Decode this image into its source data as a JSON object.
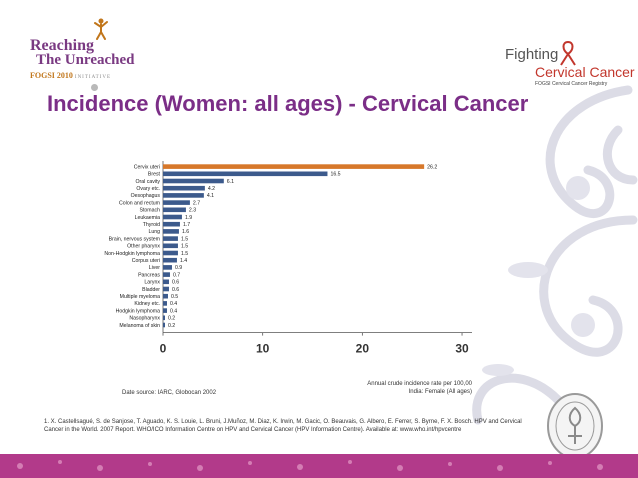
{
  "logos": {
    "left_line1": "Reaching",
    "left_line2": "The Unreached",
    "left_line3": "FOGSI 2010",
    "left_line3_small": "INITIATIVE",
    "right_line1": "Fighting",
    "right_line2": "Cervical Cancer",
    "right_line3": "FOGSI Cervical Cancer Registry"
  },
  "slide": {
    "title": "Incidence (Women: all ages) - Cervical Cancer"
  },
  "chart_data": {
    "type": "bar",
    "orientation": "horizontal",
    "categories": [
      "Cervix uteri",
      "Brest",
      "Oral cavity",
      "Ovary etc.",
      "Oesophagus",
      "Colon and rectum",
      "Stomach",
      "Leukaemia",
      "Thyroid",
      "Lung",
      "Brain, nervous system",
      "Other pharynx",
      "Non-Hodgkin lymphoma",
      "Corpus uteri",
      "Liver",
      "Pancreas",
      "Larynx",
      "Bladder",
      "Multiple myeloma",
      "Kidney etc.",
      "Hodgkin lymphoma",
      "Nasopharynx",
      "Melanoma of skin"
    ],
    "values": [
      26.2,
      16.5,
      6.1,
      4.2,
      4.1,
      2.7,
      2.3,
      1.9,
      1.7,
      1.6,
      1.5,
      1.5,
      1.5,
      1.4,
      0.9,
      0.7,
      0.6,
      0.6,
      0.5,
      0.4,
      0.4,
      0.2,
      0.2
    ],
    "value_labels": [
      "26.2",
      "16.5",
      "6.1",
      "4.2",
      "4.1",
      "2.7",
      "2.3",
      "1.9",
      "1.7",
      "1.6",
      "1.5",
      "1.5",
      "1.5",
      "1.4",
      "0.9",
      "0.7",
      "0.6",
      "0.6",
      "0.5",
      "0.4",
      "0.4",
      "0.2",
      "0.2"
    ],
    "highlight_index": 0,
    "highlight_color": "#d7782a",
    "bar_color": "#3c5a8c",
    "xlim": [
      0,
      31
    ],
    "xticks": [
      0,
      10,
      20,
      30
    ],
    "xtick_labels": [
      "0",
      "10",
      "20",
      "30"
    ],
    "axis_note_line1": "Annual crude incidence rate per 100,00",
    "axis_note_line2": "India: Female (All ages)",
    "source": "Date source: IARC, Globocan 2002"
  },
  "reference": "1. X. Castellsagué, S. de Sanjose, T. Aguado, K. S. Louie, L. Bruni, J.Muñoz, M. Diaz, K. Irwin, M. Gacic, O. Beauvais, G. Albero, E. Ferrer, S. Byrne, F. X. Bosch. HPV and Cervical Cancer in the World. 2007 Report. WHO/ICO Information Centre on HPV and Cervical Cancer (HPV Information Centre). Available at: www.who.int/hpvcentre",
  "colors": {
    "title": "#7b2e87",
    "footer": "#b23a8a",
    "swirl": "#dcdce6"
  },
  "icons": {
    "left_logo": "dancing-figure-icon",
    "right_logo": "ribbon-icon",
    "seal": "fogsi-seal-icon"
  }
}
